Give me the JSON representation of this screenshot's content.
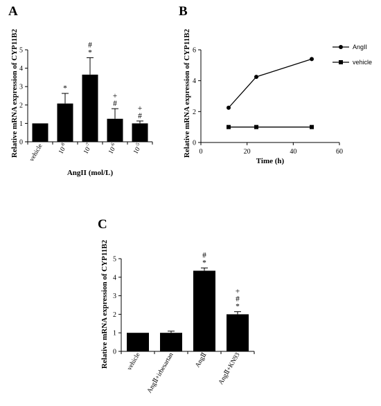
{
  "chart_data": [
    {
      "panel": "A",
      "type": "bar",
      "ylabel": "Relative mRNA expression of CYP11B2",
      "xlabel": "AngII (mol/L)",
      "ylim": [
        0,
        5
      ],
      "yticks": [
        "0",
        "1",
        "2",
        "3",
        "4",
        "5"
      ],
      "categories": [
        "vehicle",
        "10",
        "10",
        "10",
        "10"
      ],
      "exponents": [
        "",
        "-8",
        "-7",
        "-6",
        "-5"
      ],
      "values": [
        1.0,
        2.08,
        3.65,
        1.25,
        1.0
      ],
      "errors": [
        0,
        0.55,
        0.92,
        0.55,
        0.13
      ],
      "significance": [
        [],
        [
          "*"
        ],
        [
          "*",
          "#"
        ],
        [
          "#",
          "+"
        ],
        [
          "#",
          "+"
        ]
      ],
      "colors": {
        "bar": "#000000"
      }
    },
    {
      "panel": "B",
      "type": "line",
      "ylabel": "Relative mRNA expression of CYP11B2",
      "xlabel": "Time (h)",
      "xlim": [
        0,
        60
      ],
      "ylim": [
        0,
        6
      ],
      "xticks": [
        "0",
        "20",
        "40",
        "60"
      ],
      "yticks": [
        "0",
        "2",
        "4",
        "6"
      ],
      "series": [
        {
          "name": "AngII",
          "marker": "circle",
          "x": [
            12,
            24,
            48
          ],
          "y": [
            2.25,
            4.25,
            5.4
          ]
        },
        {
          "name": "vehicle",
          "marker": "square",
          "x": [
            12,
            24,
            48
          ],
          "y": [
            1.0,
            1.0,
            1.0
          ]
        }
      ],
      "legend": "top-right"
    },
    {
      "panel": "C",
      "type": "bar",
      "ylabel": "Relative mRNA expression of CYP11B2",
      "ylim": [
        0,
        5
      ],
      "yticks": [
        "0",
        "1",
        "2",
        "3",
        "4",
        "5"
      ],
      "categories": [
        "vehicle",
        "AngⅡ+irbesartan",
        "AngⅡ",
        "AngⅡ+KN93"
      ],
      "values": [
        1.0,
        1.0,
        4.35,
        2.0
      ],
      "errors": [
        0,
        0.09,
        0.15,
        0.14
      ],
      "significance": [
        [],
        [],
        [
          "*",
          "#"
        ],
        [
          "*",
          "#",
          "+"
        ]
      ],
      "colors": {
        "bar": "#000000"
      }
    }
  ]
}
